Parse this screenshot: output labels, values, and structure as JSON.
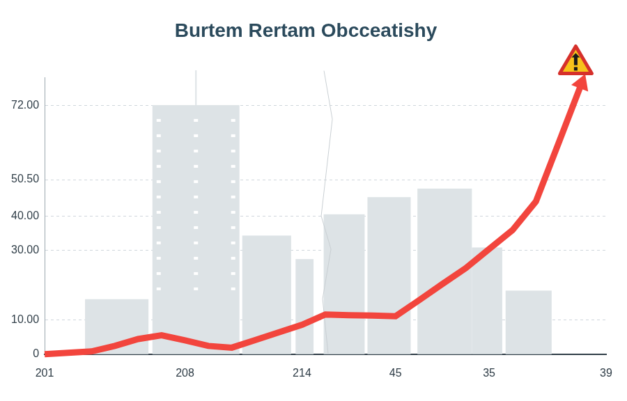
{
  "chart_data": {
    "type": "line",
    "title": "Burtem Rertam Obcceatishy",
    "categories": [
      "201",
      null,
      null,
      null,
      null,
      null,
      "208",
      null,
      null,
      null,
      null,
      "214",
      null,
      null,
      null,
      "45",
      null,
      null,
      null,
      "35",
      null,
      null,
      null,
      null,
      "39"
    ],
    "values": [
      0,
      0.4,
      0.8,
      2.4,
      4.4,
      5.5,
      4.0,
      2.4,
      1.9,
      4.1,
      6.3,
      8.5,
      11.5,
      11.3,
      11.2,
      11.0,
      15.6,
      20.3,
      24.9,
      30.4,
      35.9,
      44.2,
      61.6,
      79.2,
      null
    ],
    "color": "#f2453d",
    "ylim": [
      0,
      80
    ],
    "yticks": [
      0,
      {
        "value": 10,
        "label": "10.00"
      },
      {
        "value": 30,
        "label": "30.00"
      },
      {
        "value": 40,
        "label": "40.00"
      },
      {
        "value": 72,
        "label": "72.00"
      },
      {
        "value": 50.5,
        "label": "50.50"
      }
    ],
    "grid": true,
    "marker": "none",
    "line_style": "solid"
  }
}
